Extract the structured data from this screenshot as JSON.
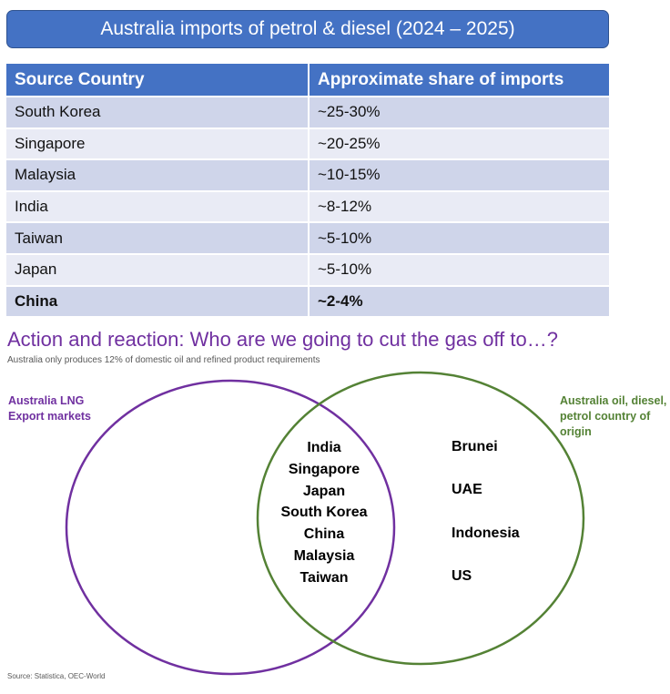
{
  "title": "Australia imports of petrol & diesel (2024 – 2025)",
  "table": {
    "headers": [
      "Source Country",
      "Approximate share of imports"
    ],
    "rows": [
      {
        "country": "South Korea",
        "share": "~25-30%"
      },
      {
        "country": "Singapore",
        "share": "~20-25%"
      },
      {
        "country": "Malaysia",
        "share": "~10-15%"
      },
      {
        "country": "India",
        "share": "~8-12%"
      },
      {
        "country": "Taiwan",
        "share": "~5-10%"
      },
      {
        "country": "Japan",
        "share": "~5-10%"
      },
      {
        "country": "China",
        "share": "~2-4%"
      }
    ]
  },
  "heading": "Action and reaction: Who are we going to cut the gas off to…?",
  "subheading": "Australia only produces 12% of domestic oil and refined product requirements",
  "venn": {
    "left_label": "Australia LNG Export markets",
    "right_label": "Australia oil, diesel, petrol country of origin",
    "overlap": [
      "India",
      "Singapore",
      "Japan",
      "South Korea",
      "China",
      "Malaysia",
      "Taiwan"
    ],
    "right_only": [
      "Brunei",
      "UAE",
      "Indonesia",
      "US"
    ],
    "colors": {
      "left": "#7030a0",
      "right": "#548235"
    }
  },
  "source": "Source: Statistica, OEC-World"
}
